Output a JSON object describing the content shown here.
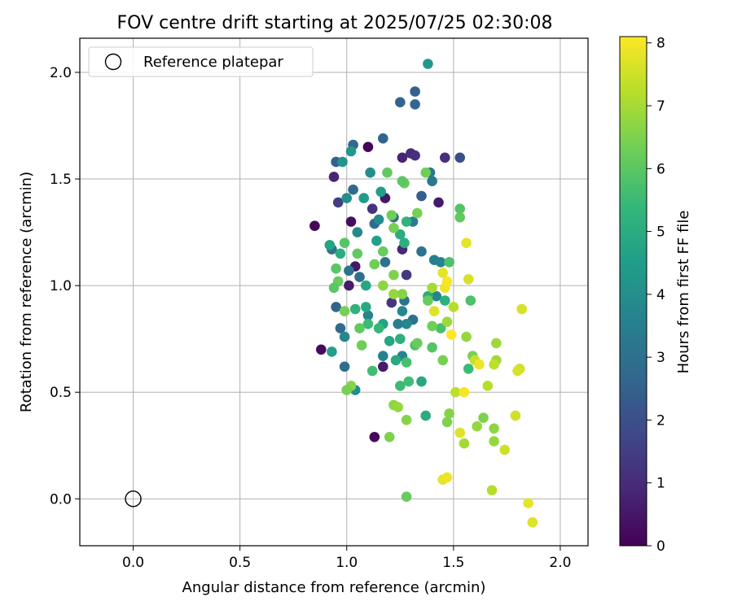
{
  "chart_data": {
    "type": "scatter",
    "title": "FOV centre drift starting at 2025/07/25 02:30:08",
    "xlabel": "Angular distance from reference (arcmin)",
    "ylabel": "Rotation from reference (arcmin)",
    "xlim": [
      -0.25,
      2.13
    ],
    "ylim": [
      -0.22,
      2.16
    ],
    "xticks": [
      "0.0",
      "0.5",
      "1.0",
      "1.5",
      "2.0"
    ],
    "xtick_values": [
      0.0,
      0.5,
      1.0,
      1.5,
      2.0
    ],
    "yticks": [
      "0.0",
      "0.5",
      "1.0",
      "1.5",
      "2.0"
    ],
    "ytick_values": [
      0.0,
      0.5,
      1.0,
      1.5,
      2.0
    ],
    "grid": true,
    "legend": {
      "position": "top-left",
      "label": "Reference platepar"
    },
    "reference_point": {
      "x": 0.0,
      "y": 0.0
    },
    "colorbar": {
      "label": "Hours from first FF file",
      "range": [
        0,
        8.1
      ],
      "ticks": [
        "0",
        "1",
        "2",
        "3",
        "4",
        "5",
        "6",
        "7",
        "8"
      ],
      "tick_values": [
        0,
        1,
        2,
        3,
        4,
        5,
        6,
        7,
        8
      ],
      "colormap": "viridis"
    },
    "colormap_stops": [
      "#440154",
      "#482878",
      "#3e4989",
      "#31688e",
      "#26828e",
      "#1f9e89",
      "#35b779",
      "#6ece58",
      "#b5de2b",
      "#fde725"
    ],
    "points": [
      [
        0.85,
        1.28,
        0.1
      ],
      [
        0.88,
        0.7,
        0.2
      ],
      [
        1.1,
        1.65,
        0.1
      ],
      [
        1.13,
        0.29,
        0.2
      ],
      [
        1.02,
        1.3,
        0.3
      ],
      [
        1.04,
        1.09,
        0.5
      ],
      [
        1.01,
        1.0,
        0.6
      ],
      [
        1.18,
        1.41,
        0.5
      ],
      [
        1.17,
        0.62,
        0.6
      ],
      [
        1.26,
        1.6,
        0.8
      ],
      [
        1.3,
        1.62,
        1.0
      ],
      [
        1.32,
        1.61,
        1.1
      ],
      [
        1.46,
        1.6,
        1.1
      ],
      [
        1.43,
        1.39,
        0.6
      ],
      [
        1.26,
        1.17,
        0.9
      ],
      [
        1.12,
        1.36,
        1.2
      ],
      [
        0.94,
        1.51,
        0.8
      ],
      [
        0.96,
        1.39,
        1.5
      ],
      [
        1.28,
        1.05,
        1.4
      ],
      [
        1.21,
        0.92,
        1.3
      ],
      [
        1.53,
        1.6,
        2.0
      ],
      [
        1.32,
        1.91,
        2.5
      ],
      [
        1.25,
        1.86,
        2.6
      ],
      [
        1.32,
        1.85,
        2.7
      ],
      [
        1.17,
        1.69,
        2.6
      ],
      [
        1.03,
        1.66,
        2.7
      ],
      [
        0.95,
        1.58,
        2.5
      ],
      [
        1.03,
        1.45,
        2.8
      ],
      [
        1.13,
        1.29,
        2.8
      ],
      [
        1.35,
        1.42,
        2.4
      ],
      [
        1.35,
        1.16,
        3.1
      ],
      [
        1.22,
        1.32,
        2.9
      ],
      [
        1.06,
        1.04,
        2.9
      ],
      [
        0.93,
        1.17,
        3.0
      ],
      [
        0.95,
        0.9,
        2.6
      ],
      [
        0.97,
        0.8,
        2.8
      ],
      [
        0.99,
        0.62,
        2.9
      ],
      [
        1.01,
        1.07,
        3.1
      ],
      [
        1.18,
        1.11,
        3.0
      ],
      [
        1.27,
        0.93,
        3.1
      ],
      [
        1.31,
        0.84,
        3.0
      ],
      [
        1.38,
        2.04,
        4.3
      ],
      [
        1.39,
        1.53,
        3.3
      ],
      [
        1.4,
        1.49,
        3.3
      ],
      [
        1.31,
        1.3,
        3.4
      ],
      [
        1.41,
        1.12,
        3.5
      ],
      [
        1.44,
        1.11,
        3.6
      ],
      [
        1.42,
        0.95,
        3.7
      ],
      [
        1.28,
        0.82,
        3.8
      ],
      [
        1.24,
        0.82,
        3.5
      ],
      [
        1.26,
        0.88,
        3.8
      ],
      [
        1.26,
        0.67,
        3.7
      ],
      [
        1.17,
        0.67,
        3.6
      ],
      [
        1.1,
        0.86,
        3.7
      ],
      [
        0.99,
        0.76,
        3.8
      ],
      [
        1.04,
        0.51,
        4.0
      ],
      [
        1.05,
        1.25,
        3.9
      ],
      [
        1.15,
        1.31,
        3.9
      ],
      [
        1.0,
        1.41,
        4.0
      ],
      [
        0.98,
        1.58,
        4.2
      ],
      [
        1.02,
        1.63,
        4.3
      ],
      [
        1.11,
        1.53,
        4.0
      ],
      [
        1.16,
        1.44,
        4.5
      ],
      [
        1.08,
        1.41,
        4.4
      ],
      [
        1.14,
        1.21,
        4.6
      ],
      [
        0.92,
        1.19,
        4.7
      ],
      [
        0.97,
        1.15,
        5.0
      ],
      [
        1.09,
        1.0,
        4.8
      ],
      [
        1.09,
        0.9,
        4.9
      ],
      [
        1.17,
        0.82,
        4.7
      ],
      [
        1.2,
        0.74,
        4.8
      ],
      [
        1.23,
        0.65,
        4.9
      ],
      [
        1.25,
        0.75,
        5.1
      ],
      [
        1.25,
        1.24,
        5.0
      ],
      [
        1.27,
        1.2,
        5.1
      ],
      [
        1.28,
        1.3,
        5.2
      ],
      [
        1.38,
        0.95,
        5.0
      ],
      [
        1.46,
        0.93,
        5.1
      ],
      [
        1.35,
        0.55,
        4.8
      ],
      [
        1.37,
        0.39,
        5.0
      ],
      [
        0.93,
        0.69,
        4.6
      ],
      [
        1.04,
        0.89,
        5.2
      ],
      [
        1.1,
        0.82,
        5.5
      ],
      [
        1.15,
        0.8,
        5.4
      ],
      [
        1.12,
        0.6,
        5.6
      ],
      [
        1.25,
        0.53,
        5.5
      ],
      [
        1.29,
        0.55,
        5.6
      ],
      [
        1.28,
        0.64,
        5.7
      ],
      [
        1.32,
        0.72,
        5.8
      ],
      [
        1.4,
        0.71,
        5.9
      ],
      [
        1.44,
        0.8,
        5.7
      ],
      [
        1.48,
        1.11,
        5.8
      ],
      [
        1.53,
        1.36,
        5.9
      ],
      [
        1.53,
        1.32,
        6.1
      ],
      [
        1.58,
        0.93,
        5.8
      ],
      [
        1.57,
        0.61,
        5.5
      ],
      [
        1.59,
        0.67,
        6.4
      ],
      [
        1.64,
        0.38,
        6.5
      ],
      [
        1.69,
        0.33,
        6.7
      ],
      [
        1.69,
        0.27,
        6.8
      ],
      [
        1.7,
        0.73,
        6.9
      ],
      [
        1.7,
        0.65,
        6.9
      ],
      [
        1.61,
        0.34,
        6.8
      ],
      [
        1.55,
        0.26,
        7.0
      ],
      [
        1.48,
        0.4,
        6.6
      ],
      [
        1.47,
        0.36,
        6.5
      ],
      [
        1.45,
        0.65,
        6.4
      ],
      [
        1.4,
        0.81,
        6.3
      ],
      [
        1.38,
        0.93,
        6.2
      ],
      [
        1.33,
        0.73,
        6.2
      ],
      [
        1.33,
        1.34,
        6.4
      ],
      [
        1.37,
        1.53,
        6.3
      ],
      [
        1.27,
        1.48,
        6.2
      ],
      [
        1.26,
        1.49,
        6.0
      ],
      [
        1.19,
        1.53,
        6.1
      ],
      [
        1.21,
        1.33,
        6.3
      ],
      [
        1.22,
        1.27,
        6.4
      ],
      [
        1.17,
        1.16,
        6.2
      ],
      [
        1.13,
        1.1,
        6.3
      ],
      [
        1.05,
        1.15,
        6.1
      ],
      [
        0.99,
        1.2,
        5.9
      ],
      [
        0.95,
        1.08,
        6.0
      ],
      [
        0.96,
        1.02,
        6.2
      ],
      [
        0.94,
        0.99,
        6.0
      ],
      [
        0.99,
        0.88,
        6.4
      ],
      [
        1.06,
        0.8,
        6.1
      ],
      [
        1.07,
        0.72,
        6.3
      ],
      [
        1.02,
        0.53,
        6.6
      ],
      [
        1.0,
        0.51,
        6.4
      ],
      [
        1.22,
        0.44,
        6.7
      ],
      [
        1.24,
        0.43,
        6.8
      ],
      [
        1.28,
        0.37,
        6.6
      ],
      [
        1.2,
        0.29,
        6.5
      ],
      [
        1.28,
        0.01,
        6.2
      ],
      [
        1.22,
        0.96,
        6.8
      ],
      [
        1.17,
        1.0,
        6.7
      ],
      [
        1.22,
        1.05,
        6.5
      ],
      [
        1.26,
        0.96,
        6.6
      ],
      [
        1.4,
        0.99,
        7.0
      ],
      [
        1.47,
        0.83,
        6.9
      ],
      [
        1.5,
        0.9,
        7.2
      ],
      [
        1.51,
        0.5,
        7.3
      ],
      [
        1.66,
        0.53,
        7.2
      ],
      [
        1.69,
        0.63,
        7.3
      ],
      [
        1.56,
        0.76,
        6.8
      ],
      [
        1.6,
        0.65,
        7.4
      ],
      [
        1.79,
        0.39,
        7.5
      ],
      [
        1.81,
        0.61,
        7.5
      ],
      [
        1.82,
        0.89,
        7.6
      ],
      [
        1.74,
        0.23,
        7.5
      ],
      [
        1.68,
        0.04,
        7.2
      ],
      [
        1.85,
        -0.02,
        7.8
      ],
      [
        1.87,
        -0.11,
        7.7
      ],
      [
        1.45,
        0.09,
        7.8
      ],
      [
        1.47,
        0.1,
        7.9
      ],
      [
        1.53,
        0.31,
        7.7
      ],
      [
        1.55,
        0.5,
        8.0
      ],
      [
        1.49,
        0.77,
        8.1
      ],
      [
        1.57,
        1.03,
        7.6
      ],
      [
        1.56,
        1.2,
        7.8
      ],
      [
        1.46,
        0.99,
        7.9
      ],
      [
        1.47,
        1.02,
        8.0
      ],
      [
        1.45,
        1.06,
        7.8
      ],
      [
        1.62,
        0.63,
        7.9
      ],
      [
        1.8,
        0.6,
        7.6
      ],
      [
        1.41,
        0.88,
        7.7
      ]
    ]
  }
}
